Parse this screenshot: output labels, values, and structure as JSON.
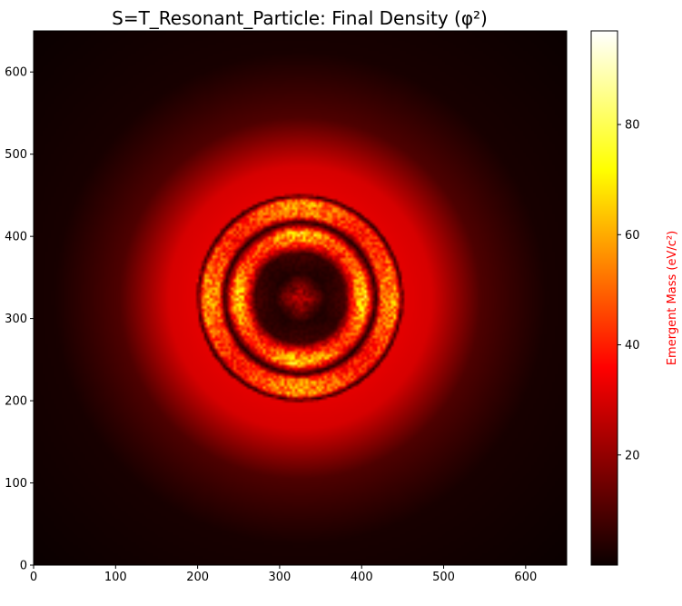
{
  "chart_data": {
    "type": "heatmap",
    "title": "S=T_Resonant_Particle: Final Density (φ²)",
    "xlabel": "",
    "ylabel": "",
    "xlim": [
      0,
      650
    ],
    "ylim": [
      0,
      650
    ],
    "x_ticks": [
      0,
      100,
      200,
      300,
      400,
      500,
      600
    ],
    "y_ticks": [
      0,
      100,
      200,
      300,
      400,
      500,
      600
    ],
    "colormap": "hot",
    "colorbar": {
      "label": "Emergent Mass (eV/c²)",
      "label_color": "#ff0000",
      "range": [
        0,
        97
      ],
      "ticks": [
        20,
        40,
        60,
        80
      ]
    },
    "field": {
      "center": [
        325,
        325
      ],
      "description_profile_radial": [
        {
          "r": 0,
          "value": 30
        },
        {
          "r": 30,
          "value": 4
        },
        {
          "r": 55,
          "value": 8
        },
        {
          "r": 70,
          "value": 55
        },
        {
          "r": 80,
          "value": 62
        },
        {
          "r": 92,
          "value": 3
        },
        {
          "r": 100,
          "value": 50
        },
        {
          "r": 118,
          "value": 55
        },
        {
          "r": 124,
          "value": 4
        },
        {
          "r": 127,
          "value": 32
        },
        {
          "r": 160,
          "value": 30
        },
        {
          "r": 220,
          "value": 10
        },
        {
          "r": 300,
          "value": 2
        },
        {
          "r": 460,
          "value": 0
        }
      ]
    }
  }
}
